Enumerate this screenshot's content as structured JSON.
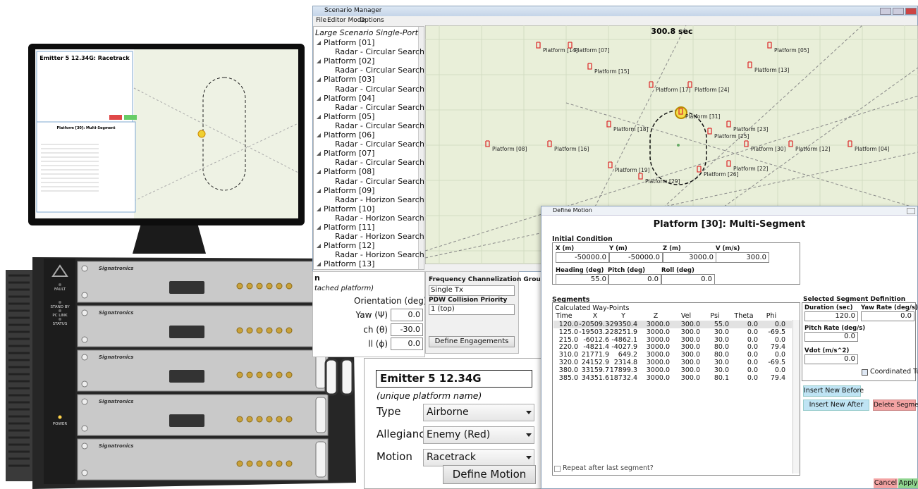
{
  "monitor": {
    "title": "Emitter 5 12.34G: Racetrack",
    "subtitle": "Platform [30]: Multi-Segment"
  },
  "hardware": {
    "brand": "Signatronics",
    "indicators": [
      "FAULT",
      "STAND BY",
      "PC LINK",
      "STATUS"
    ],
    "power": "POWER"
  },
  "scenario_manager": {
    "title": "Scenario Manager",
    "menu": [
      "File",
      "Editor Mode",
      "Options"
    ],
    "tree_root": "Large Scenario Single-Port",
    "platforms": [
      {
        "name": "Platform [01]",
        "radar": "Radar - Circular Search"
      },
      {
        "name": "Platform [02]",
        "radar": "Radar - Circular Search"
      },
      {
        "name": "Platform [03]",
        "radar": "Radar - Circular Search"
      },
      {
        "name": "Platform [04]",
        "radar": "Radar - Circular Search"
      },
      {
        "name": "Platform [05]",
        "radar": "Radar - Circular Search"
      },
      {
        "name": "Platform [06]",
        "radar": "Radar - Circular Search"
      },
      {
        "name": "Platform [07]",
        "radar": "Radar - Circular Search"
      },
      {
        "name": "Platform [08]",
        "radar": "Radar - Circular Search"
      },
      {
        "name": "Platform [09]",
        "radar": "Radar - Horizon Search"
      },
      {
        "name": "Platform [10]",
        "radar": "Radar - Horizon Search"
      },
      {
        "name": "Platform [11]",
        "radar": "Radar - Horizon Search"
      },
      {
        "name": "Platform [12]",
        "radar": "Radar - Horizon Search"
      },
      {
        "name": "Platform [13]"
      }
    ],
    "map": {
      "time": "300.8 sec",
      "labels": [
        "Platform [14]",
        "Platform [07]",
        "Platform [05]",
        "Platform [15]",
        "Platform [13]",
        "Platform [17]",
        "Platform [24]",
        "Platform [31]",
        "Platform [23]",
        "Platform [18]",
        "Platform [25]",
        "Platform [08]",
        "Platform [16]",
        "Platform [30]",
        "Platform [12]",
        "Platform [04]",
        "Platform [19]",
        "Platform [22]",
        "Platform [26]",
        "Platform [29]"
      ]
    }
  },
  "orientation_panel": {
    "heading": "n",
    "note": "tached platform)",
    "title": "Orientation (deg)",
    "fields": [
      {
        "label": "Yaw (Ψ)",
        "value": "0.0"
      },
      {
        "label": "ch (θ)",
        "value": "-30.0"
      },
      {
        "label": "ll (ϕ)",
        "value": "0.0"
      }
    ]
  },
  "channel_panel": {
    "group_label": "Frequency Channelization Group",
    "group_value": "Single Tx",
    "priority_label": "PDW Collision Priority",
    "priority_value": "1 (top)",
    "button": "Define Engagements"
  },
  "emitter_panel": {
    "name": "Emitter 5 12.34G",
    "hint": "(unique platform name)",
    "fields": [
      {
        "label": "Type",
        "value": "Airborne"
      },
      {
        "label": "Allegiance",
        "value": "Enemy (Red)"
      },
      {
        "label": "Motion",
        "value": "Racetrack"
      }
    ],
    "button": "Define Motion"
  },
  "define_motion": {
    "window_title": "Define Motion",
    "heading": "Platform [30]: Multi-Segment",
    "initial_condition": {
      "title": "Initial Condition",
      "fields": [
        {
          "label": "X (m)",
          "value": "-50000.0"
        },
        {
          "label": "Y (m)",
          "value": "-50000.0"
        },
        {
          "label": "Z (m)",
          "value": "3000.0"
        },
        {
          "label": "V (m/s)",
          "value": "300.0"
        },
        {
          "label": "Heading (deg)",
          "value": "55.0"
        },
        {
          "label": "Pitch (deg)",
          "value": "0.0"
        },
        {
          "label": "Roll (deg)",
          "value": "0.0"
        }
      ]
    },
    "segments": {
      "title": "Segments",
      "subtitle": "Calculated Way-Points",
      "columns": [
        "Time",
        "X",
        "Y",
        "Z",
        "Vel",
        "Psi",
        "Theta",
        "Phi"
      ],
      "rows": [
        [
          "120.0",
          "-20509.3",
          "-29350.4",
          "3000.0",
          "300.0",
          "55.0",
          "0.0",
          "0.0"
        ],
        [
          "125.0",
          "-19503.2",
          "-28251.9",
          "3000.0",
          "300.0",
          "30.0",
          "0.0",
          "-69.5"
        ],
        [
          "215.0",
          "-6012.6",
          "-4862.1",
          "3000.0",
          "300.0",
          "30.0",
          "0.0",
          "0.0"
        ],
        [
          "220.0",
          "-4821.4",
          "-4027.9",
          "3000.0",
          "300.0",
          "80.0",
          "0.0",
          "79.4"
        ],
        [
          "310.0",
          "21771.9",
          "649.2",
          "3000.0",
          "300.0",
          "80.0",
          "0.0",
          "0.0"
        ],
        [
          "320.0",
          "24152.9",
          "2314.8",
          "3000.0",
          "300.0",
          "30.0",
          "0.0",
          "-69.5"
        ],
        [
          "380.0",
          "33159.7",
          "17899.3",
          "3000.0",
          "300.0",
          "30.0",
          "0.0",
          "0.0"
        ],
        [
          "385.0",
          "34351.6",
          "18732.4",
          "3000.0",
          "300.0",
          "80.1",
          "0.0",
          "79.4"
        ]
      ]
    },
    "selected": {
      "title": "Selected Segment Definition",
      "fields": [
        {
          "label": "Duration (sec)",
          "value": "120.0"
        },
        {
          "label": "Yaw Rate (deg/s)",
          "value": "0.0"
        },
        {
          "label": "Pitch Rate (deg/s)",
          "value": "0.0"
        },
        {
          "label": "Vdot (m/s^2)",
          "value": "0.0"
        }
      ],
      "checkbox": "Coordinated Turn"
    },
    "buttons": {
      "insert_before": "Insert New Before",
      "insert_after": "Insert New After",
      "delete": "Delete Segment"
    },
    "repeat": "Repeat after last segment?",
    "cancel": "Cancel",
    "apply": "Apply"
  }
}
